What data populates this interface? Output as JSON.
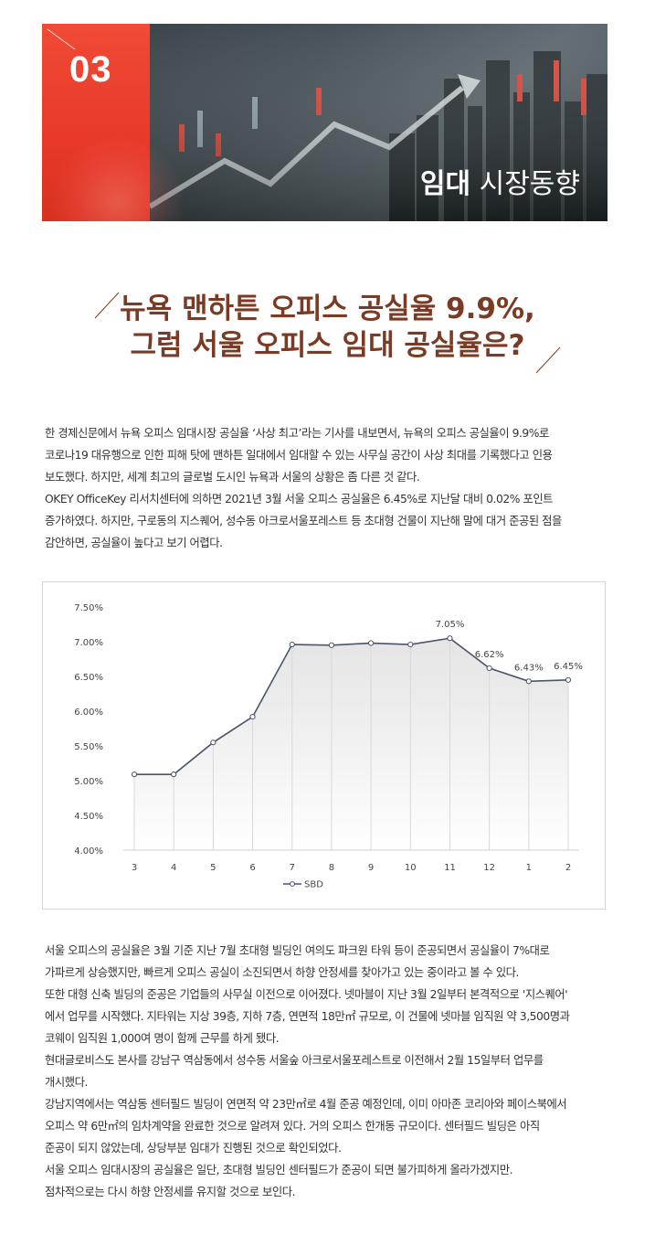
{
  "banner": {
    "number": "03",
    "title_bold": "임대",
    "title_light": "시장동향"
  },
  "headline": {
    "line1": "뉴욕 맨하튼 오피스 공실율 9.9%,",
    "line2": "그럼 서울 오피스 임대 공실율은?"
  },
  "intro_lines": [
    "한 경제신문에서 뉴욕 오피스 임대시장 공실율 ‘사상 최고’라는 기사를 내보면서, 뉴욕의 오피스 공실율이 9.9%로",
    "코로나19 대유행으로 인한 피해 탓에 맨하튼 일대에서 임대할 수 있는 사무실 공간이 사상 최대를 기록했다고 인용",
    "보도했다. 하지만, 세계 최고의 글로벌 도시인 뉴욕과 서울의 상황은 좀 다른 것 같다.",
    "OKEY OfficeKey 리서치센터에 의하면 2021년 3월 서울 오피스 공실율은 6.45%로 지난달 대비 0.02% 포인트",
    "증가하였다. 하지만, 구로동의 지스퀘어, 성수동 아크로서울포레스트 등 초대형 건물이 지난해 말에 대거 준공된 점을",
    "감안하면, 공실율이 높다고 보기 어렵다."
  ],
  "body_lines": [
    "서울 오피스의 공실율은 3월 기준 지난 7월 초대형 빌딩인 여의도 파크원 타워 등이 준공되면서 공실율이 7%대로",
    "가파르게 상승했지만, 빠르게 오피스 공실이 소진되면서 하향 안정세를 찾아가고 있는 중이라고 볼 수 있다.",
    "또한 대형 신축 빌딩의 준공은 기업들의 사무실 이전으로 이어졌다. 넷마블이 지난 3월 2일부터 본격적으로 '지스퀘어'",
    "에서 업무를 시작했다. 지타워는 지상 39층, 지하 7층, 연면적 18만㎡ 규모로, 이 건물에 넷마블 임직원 약 3,500명과",
    "코웨이 임직원 1,000여 명이 함께 근무를 하게 됐다.",
    "현대글로비스도 본사를 강남구 역삼동에서 성수동 서울숲 아크로서울포레스트로 이전해서 2월 15일부터 업무를",
    "개시했다.",
    "강남지역에서는 역삼동 센터필드 빌딩이 연면적 약 23만㎡로 4월 준공 예정인데, 이미 아마존 코리아와 페이스북에서",
    "오피스 약 6만㎡의 임차계약을 완료한 것으로 알려져 있다. 거의 오피스 한개동 규모이다. 센터필드 빌딩은 아직",
    "준공이 되지 않았는데, 상당부분 임대가 진행된 것으로 확인되었다.",
    "서울 오피스 임대시장의 공실율은 일단, 초대형 빌딩인 센터필드가 준공이 되면 불가피하게 올라가겠지만.",
    "점차적으로는 다시 하향 안정세를 유지할 것으로 보인다."
  ],
  "chart_data": {
    "type": "line",
    "categories": [
      "3",
      "4",
      "5",
      "6",
      "7",
      "8",
      "9",
      "10",
      "11",
      "12",
      "1",
      "2"
    ],
    "series": [
      {
        "name": "SBD",
        "values": [
          5.09,
          5.09,
          5.55,
          5.92,
          6.96,
          6.95,
          6.98,
          6.96,
          7.05,
          6.62,
          6.43,
          6.45
        ],
        "data_labels": [
          "",
          "",
          "",
          "",
          "",
          "",
          "",
          "",
          "7.05%",
          "6.62%",
          "6.43%",
          "6.45%"
        ]
      }
    ],
    "y_ticks": [
      "4.00%",
      "4.50%",
      "5.00%",
      "5.50%",
      "6.00%",
      "6.50%",
      "7.00%",
      "7.50%"
    ],
    "ylim": [
      4.0,
      7.5
    ],
    "legend_position": "bottom",
    "colors": {
      "line": "#4a5568",
      "marker_fill": "#ffffff",
      "area_top": "#e2e2e2"
    }
  }
}
